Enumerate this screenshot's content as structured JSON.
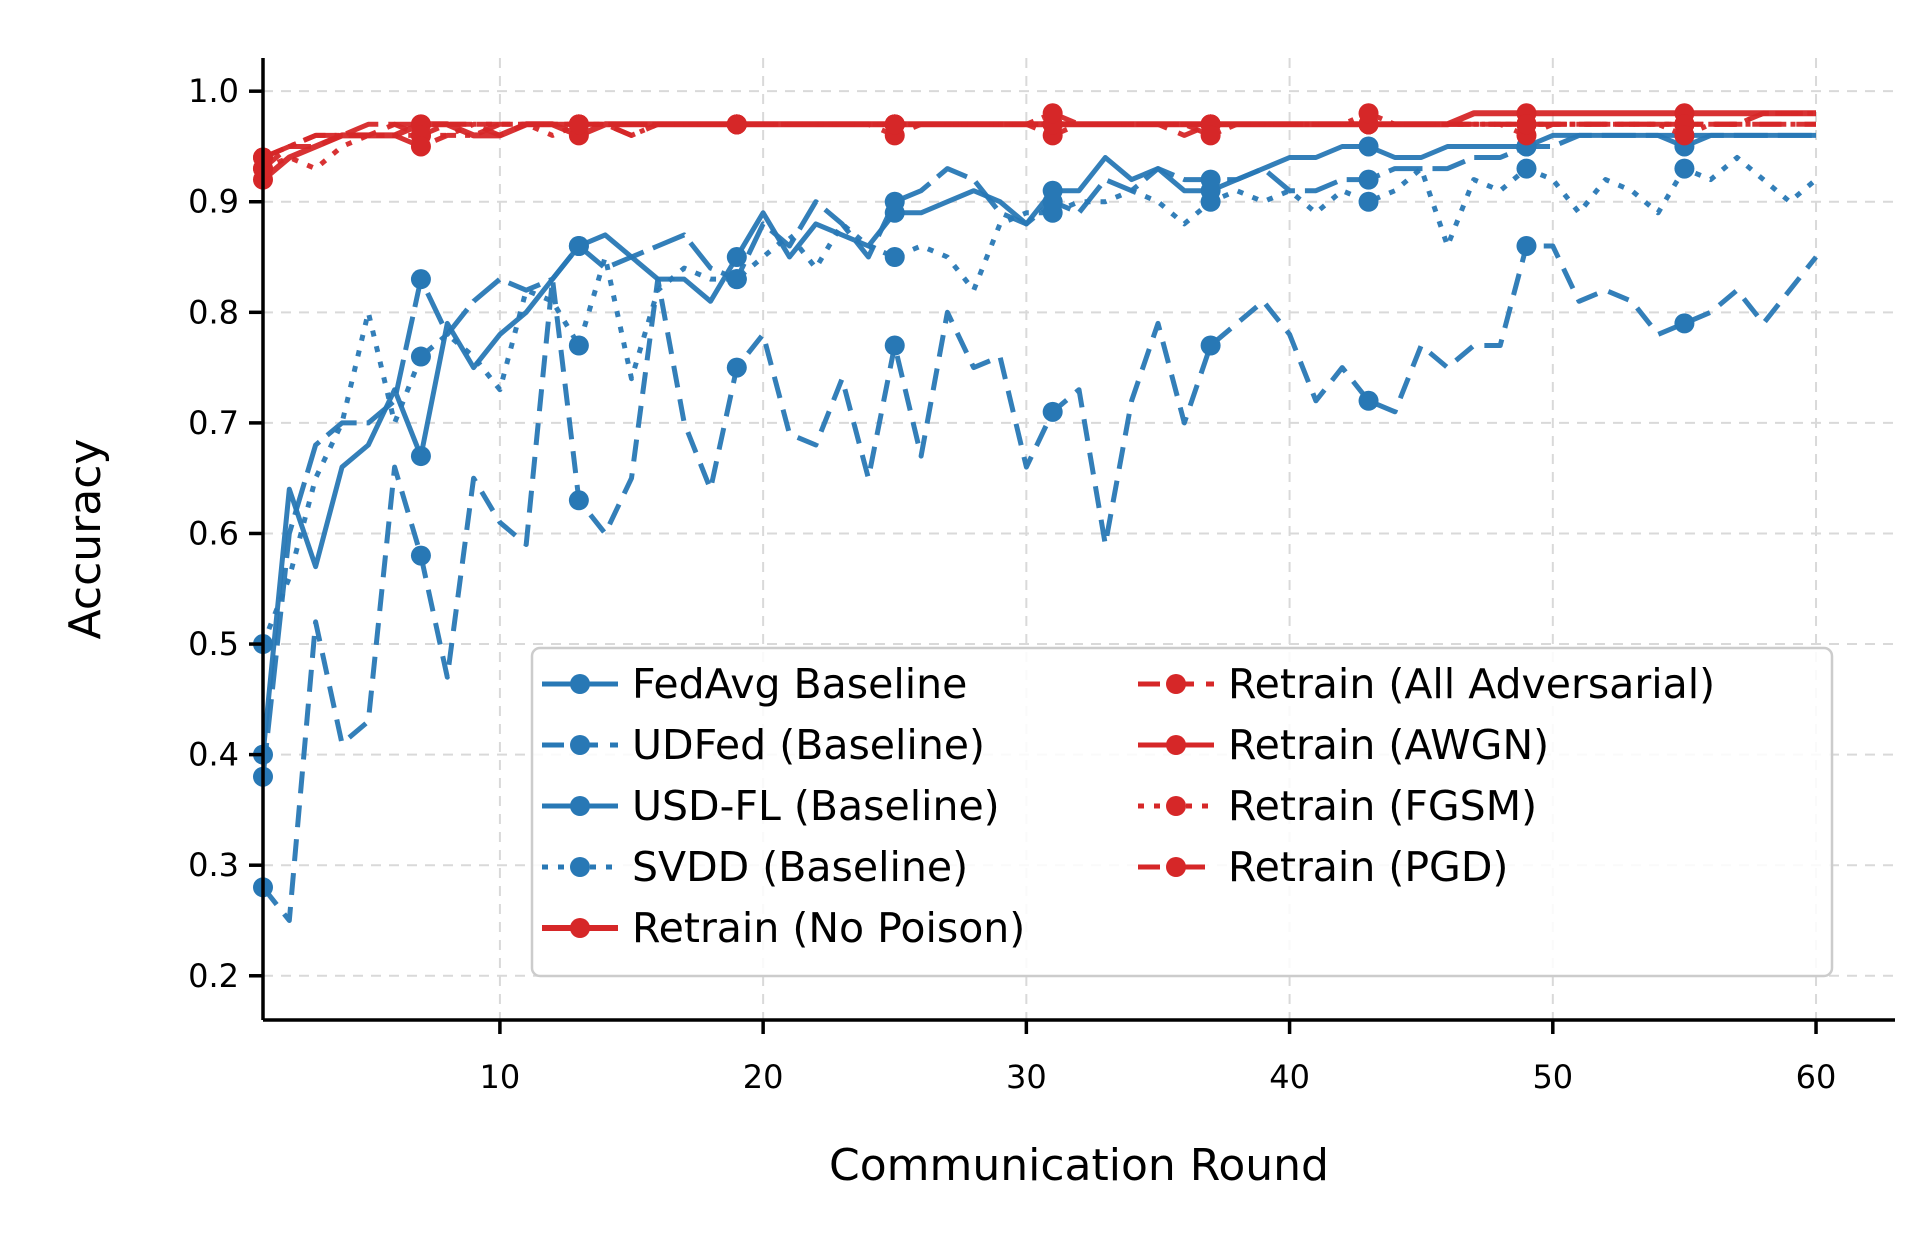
{
  "chart_data": {
    "type": "line",
    "xlabel": "Communication Round",
    "ylabel": "Accuracy",
    "xlim": [
      1,
      63
    ],
    "ylim": [
      0.16,
      1.03
    ],
    "xticks": [
      10,
      20,
      30,
      40,
      50,
      60
    ],
    "yticks": [
      0.2,
      0.3,
      0.4,
      0.5,
      0.6,
      0.7,
      0.8,
      0.9,
      1.0
    ],
    "ytick_labels": [
      "0.2",
      "0.3",
      "0.4",
      "0.5",
      "0.6",
      "0.7",
      "0.8",
      "0.9",
      "1.0"
    ],
    "grid": true,
    "legend_position": "lower-right",
    "marker_every": 6,
    "marker_start": 1,
    "series": [
      {
        "name": "FedAvg Baseline",
        "color": "#2878b5",
        "dash": "solid",
        "width": 5,
        "x": [
          1,
          2,
          3,
          4,
          5,
          6,
          7,
          8,
          9,
          10,
          11,
          12,
          13,
          14,
          15,
          16,
          17,
          18,
          19,
          20,
          21,
          22,
          23,
          24,
          25,
          26,
          27,
          28,
          29,
          30,
          31,
          32,
          33,
          34,
          35,
          36,
          37,
          38,
          39,
          40,
          41,
          42,
          43,
          44,
          45,
          46,
          47,
          48,
          49,
          50,
          51,
          52,
          53,
          54,
          55,
          56,
          57,
          58,
          59,
          60
        ],
        "values": [
          0.4,
          0.64,
          0.57,
          0.66,
          0.68,
          0.73,
          0.67,
          0.79,
          0.75,
          0.78,
          0.8,
          0.83,
          0.86,
          0.87,
          0.85,
          0.83,
          0.83,
          0.81,
          0.85,
          0.89,
          0.85,
          0.88,
          0.87,
          0.86,
          0.89,
          0.89,
          0.9,
          0.91,
          0.9,
          0.88,
          0.91,
          0.91,
          0.94,
          0.92,
          0.93,
          0.91,
          0.91,
          0.92,
          0.93,
          0.94,
          0.94,
          0.95,
          0.95,
          0.94,
          0.94,
          0.95,
          0.95,
          0.95,
          0.95,
          0.96,
          0.96,
          0.96,
          0.96,
          0.96,
          0.95,
          0.96,
          0.96,
          0.96,
          0.96,
          0.96
        ]
      },
      {
        "name": "UDFed (Baseline)",
        "color": "#2878b5",
        "dash": "dashed",
        "width": 5,
        "x": [
          1,
          2,
          3,
          4,
          5,
          6,
          7,
          8,
          9,
          10,
          11,
          12,
          13,
          14,
          15,
          16,
          17,
          18,
          19,
          20,
          21,
          22,
          23,
          24,
          25,
          26,
          27,
          28,
          29,
          30,
          31,
          32,
          33,
          34,
          35,
          36,
          37,
          38,
          39,
          40,
          41,
          42,
          43,
          44,
          45,
          46,
          47,
          48,
          49,
          50,
          51,
          52,
          53,
          54,
          55,
          56,
          57,
          58,
          59,
          60
        ],
        "values": [
          0.28,
          0.25,
          0.52,
          0.41,
          0.43,
          0.66,
          0.58,
          0.47,
          0.65,
          0.61,
          0.59,
          0.83,
          0.63,
          0.6,
          0.65,
          0.83,
          0.7,
          0.64,
          0.75,
          0.78,
          0.69,
          0.68,
          0.74,
          0.65,
          0.77,
          0.67,
          0.8,
          0.75,
          0.76,
          0.66,
          0.71,
          0.73,
          0.59,
          0.72,
          0.79,
          0.7,
          0.77,
          0.79,
          0.81,
          0.78,
          0.72,
          0.75,
          0.72,
          0.71,
          0.77,
          0.75,
          0.77,
          0.77,
          0.86,
          0.86,
          0.81,
          0.82,
          0.81,
          0.78,
          0.79,
          0.8,
          0.82,
          0.79,
          0.82,
          0.85
        ]
      },
      {
        "name": "USD-FL (Baseline)",
        "color": "#2878b5",
        "dash": "longdash",
        "width": 5,
        "x": [
          1,
          2,
          3,
          4,
          5,
          6,
          7,
          8,
          9,
          10,
          11,
          12,
          13,
          14,
          15,
          16,
          17,
          18,
          19,
          20,
          21,
          22,
          23,
          24,
          25,
          26,
          27,
          28,
          29,
          30,
          31,
          32,
          33,
          34,
          35,
          36,
          37,
          38,
          39,
          40,
          41,
          42,
          43,
          44,
          45,
          46,
          47,
          48,
          49,
          50,
          51,
          52,
          53,
          54,
          55,
          56,
          57,
          58,
          59,
          60
        ],
        "values": [
          0.38,
          0.6,
          0.68,
          0.7,
          0.7,
          0.72,
          0.83,
          0.78,
          0.81,
          0.83,
          0.82,
          0.83,
          0.86,
          0.84,
          0.85,
          0.86,
          0.87,
          0.84,
          0.83,
          0.88,
          0.86,
          0.9,
          0.88,
          0.85,
          0.9,
          0.91,
          0.93,
          0.92,
          0.89,
          0.88,
          0.9,
          0.89,
          0.92,
          0.91,
          0.93,
          0.92,
          0.92,
          0.92,
          0.93,
          0.91,
          0.91,
          0.92,
          0.92,
          0.93,
          0.93,
          0.93,
          0.94,
          0.94,
          0.95,
          0.95,
          0.96,
          0.96,
          0.96,
          0.96,
          0.96,
          0.96,
          0.96,
          0.96,
          0.96,
          0.96
        ]
      },
      {
        "name": "SVDD (Baseline)",
        "color": "#2878b5",
        "dash": "dotted",
        "width": 5,
        "x": [
          1,
          2,
          3,
          4,
          5,
          6,
          7,
          8,
          9,
          10,
          11,
          12,
          13,
          14,
          15,
          16,
          17,
          18,
          19,
          20,
          21,
          22,
          23,
          24,
          25,
          26,
          27,
          28,
          29,
          30,
          31,
          32,
          33,
          34,
          35,
          36,
          37,
          38,
          39,
          40,
          41,
          42,
          43,
          44,
          45,
          46,
          47,
          48,
          49,
          50,
          51,
          52,
          53,
          54,
          55,
          56,
          57,
          58,
          59,
          60
        ],
        "values": [
          0.5,
          0.56,
          0.65,
          0.7,
          0.8,
          0.7,
          0.76,
          0.78,
          0.76,
          0.73,
          0.82,
          0.81,
          0.77,
          0.85,
          0.74,
          0.82,
          0.84,
          0.83,
          0.83,
          0.85,
          0.87,
          0.84,
          0.88,
          0.86,
          0.85,
          0.86,
          0.85,
          0.82,
          0.88,
          0.89,
          0.89,
          0.9,
          0.9,
          0.91,
          0.9,
          0.88,
          0.9,
          0.91,
          0.9,
          0.91,
          0.89,
          0.91,
          0.9,
          0.91,
          0.93,
          0.86,
          0.92,
          0.91,
          0.93,
          0.92,
          0.89,
          0.92,
          0.91,
          0.89,
          0.93,
          0.92,
          0.94,
          0.92,
          0.9,
          0.92
        ]
      },
      {
        "name": "Retrain (No Poison)",
        "color": "#d62728",
        "dash": "solid",
        "width": 6,
        "x": [
          1,
          2,
          3,
          4,
          5,
          6,
          7,
          8,
          9,
          10,
          11,
          12,
          13,
          14,
          15,
          16,
          17,
          18,
          19,
          20,
          21,
          22,
          23,
          24,
          25,
          26,
          27,
          28,
          29,
          30,
          31,
          32,
          33,
          34,
          35,
          36,
          37,
          38,
          39,
          40,
          41,
          42,
          43,
          44,
          45,
          46,
          47,
          48,
          49,
          50,
          51,
          52,
          53,
          54,
          55,
          56,
          57,
          58,
          59,
          60
        ],
        "values": [
          0.92,
          0.94,
          0.95,
          0.96,
          0.96,
          0.96,
          0.97,
          0.97,
          0.96,
          0.96,
          0.97,
          0.97,
          0.96,
          0.97,
          0.97,
          0.97,
          0.97,
          0.97,
          0.97,
          0.97,
          0.97,
          0.97,
          0.97,
          0.97,
          0.97,
          0.97,
          0.97,
          0.97,
          0.97,
          0.97,
          0.97,
          0.97,
          0.97,
          0.97,
          0.97,
          0.97,
          0.97,
          0.97,
          0.97,
          0.97,
          0.97,
          0.97,
          0.97,
          0.97,
          0.97,
          0.97,
          0.98,
          0.98,
          0.98,
          0.98,
          0.98,
          0.98,
          0.98,
          0.98,
          0.98,
          0.98,
          0.98,
          0.98,
          0.98,
          0.98
        ]
      },
      {
        "name": "Retrain (All Adversarial)",
        "color": "#d62728",
        "dash": "dashed",
        "width": 5,
        "x": [
          1,
          2,
          3,
          4,
          5,
          6,
          7,
          8,
          9,
          10,
          11,
          12,
          13,
          14,
          15,
          16,
          17,
          18,
          19,
          20,
          21,
          22,
          23,
          24,
          25,
          26,
          27,
          28,
          29,
          30,
          31,
          32,
          33,
          34,
          35,
          36,
          37,
          38,
          39,
          40,
          41,
          42,
          43,
          44,
          45,
          46,
          47,
          48,
          49,
          50,
          51,
          52,
          53,
          54,
          55,
          56,
          57,
          58,
          59,
          60
        ],
        "values": [
          0.93,
          0.95,
          0.95,
          0.96,
          0.96,
          0.97,
          0.96,
          0.97,
          0.97,
          0.96,
          0.97,
          0.97,
          0.97,
          0.97,
          0.96,
          0.97,
          0.97,
          0.97,
          0.97,
          0.97,
          0.97,
          0.97,
          0.97,
          0.97,
          0.96,
          0.97,
          0.97,
          0.97,
          0.97,
          0.97,
          0.96,
          0.97,
          0.97,
          0.97,
          0.97,
          0.96,
          0.97,
          0.97,
          0.97,
          0.97,
          0.97,
          0.97,
          0.97,
          0.97,
          0.97,
          0.97,
          0.97,
          0.97,
          0.96,
          0.97,
          0.97,
          0.97,
          0.97,
          0.97,
          0.97,
          0.97,
          0.97,
          0.98,
          0.98,
          0.98
        ]
      },
      {
        "name": "Retrain (AWGN)",
        "color": "#d62728",
        "dash": "longdash",
        "width": 5,
        "x": [
          1,
          2,
          3,
          4,
          5,
          6,
          7,
          8,
          9,
          10,
          11,
          12,
          13,
          14,
          15,
          16,
          17,
          18,
          19,
          20,
          21,
          22,
          23,
          24,
          25,
          26,
          27,
          28,
          29,
          30,
          31,
          32,
          33,
          34,
          35,
          36,
          37,
          38,
          39,
          40,
          41,
          42,
          43,
          44,
          45,
          46,
          47,
          48,
          49,
          50,
          51,
          52,
          53,
          54,
          55,
          56,
          57,
          58,
          59,
          60
        ],
        "values": [
          0.94,
          0.95,
          0.96,
          0.96,
          0.97,
          0.97,
          0.97,
          0.97,
          0.97,
          0.97,
          0.97,
          0.97,
          0.97,
          0.97,
          0.97,
          0.97,
          0.97,
          0.97,
          0.97,
          0.97,
          0.97,
          0.97,
          0.97,
          0.97,
          0.97,
          0.97,
          0.97,
          0.97,
          0.97,
          0.97,
          0.97,
          0.97,
          0.97,
          0.97,
          0.97,
          0.97,
          0.97,
          0.97,
          0.97,
          0.97,
          0.97,
          0.97,
          0.97,
          0.97,
          0.97,
          0.97,
          0.97,
          0.97,
          0.97,
          0.97,
          0.97,
          0.97,
          0.97,
          0.97,
          0.97,
          0.97,
          0.97,
          0.97,
          0.97,
          0.97
        ]
      },
      {
        "name": "Retrain (FGSM)",
        "color": "#d62728",
        "dash": "dotted",
        "width": 5,
        "x": [
          1,
          2,
          3,
          4,
          5,
          6,
          7,
          8,
          9,
          10,
          11,
          12,
          13,
          14,
          15,
          16,
          17,
          18,
          19,
          20,
          21,
          22,
          23,
          24,
          25,
          26,
          27,
          28,
          29,
          30,
          31,
          32,
          33,
          34,
          35,
          36,
          37,
          38,
          39,
          40,
          41,
          42,
          43,
          44,
          45,
          46,
          47,
          48,
          49,
          50,
          51,
          52,
          53,
          54,
          55,
          56,
          57,
          58,
          59,
          60
        ],
        "values": [
          0.93,
          0.94,
          0.93,
          0.95,
          0.96,
          0.96,
          0.96,
          0.96,
          0.97,
          0.97,
          0.97,
          0.96,
          0.97,
          0.97,
          0.97,
          0.97,
          0.97,
          0.97,
          0.97,
          0.97,
          0.97,
          0.97,
          0.97,
          0.97,
          0.97,
          0.97,
          0.97,
          0.97,
          0.97,
          0.97,
          0.97,
          0.97,
          0.97,
          0.97,
          0.97,
          0.97,
          0.97,
          0.97,
          0.97,
          0.97,
          0.97,
          0.97,
          0.97,
          0.97,
          0.97,
          0.97,
          0.97,
          0.97,
          0.97,
          0.97,
          0.97,
          0.97,
          0.97,
          0.97,
          0.97,
          0.97,
          0.97,
          0.98,
          0.98,
          0.98
        ]
      },
      {
        "name": "Retrain (PGD)",
        "color": "#d62728",
        "dash": "dashdot",
        "width": 5,
        "x": [
          1,
          2,
          3,
          4,
          5,
          6,
          7,
          8,
          9,
          10,
          11,
          12,
          13,
          14,
          15,
          16,
          17,
          18,
          19,
          20,
          21,
          22,
          23,
          24,
          25,
          26,
          27,
          28,
          29,
          30,
          31,
          32,
          33,
          34,
          35,
          36,
          37,
          38,
          39,
          40,
          41,
          42,
          43,
          44,
          45,
          46,
          47,
          48,
          49,
          50,
          51,
          52,
          53,
          54,
          55,
          56,
          57,
          58,
          59,
          60
        ],
        "values": [
          0.94,
          0.95,
          0.96,
          0.96,
          0.96,
          0.96,
          0.95,
          0.96,
          0.96,
          0.97,
          0.97,
          0.97,
          0.97,
          0.97,
          0.96,
          0.97,
          0.97,
          0.97,
          0.97,
          0.97,
          0.97,
          0.97,
          0.97,
          0.97,
          0.97,
          0.97,
          0.97,
          0.97,
          0.97,
          0.97,
          0.98,
          0.97,
          0.97,
          0.97,
          0.97,
          0.97,
          0.96,
          0.97,
          0.97,
          0.97,
          0.97,
          0.97,
          0.98,
          0.97,
          0.97,
          0.97,
          0.97,
          0.97,
          0.97,
          0.97,
          0.97,
          0.97,
          0.97,
          0.97,
          0.96,
          0.97,
          0.97,
          0.97,
          0.97,
          0.97
        ]
      }
    ],
    "legend_columns": [
      [
        "FedAvg Baseline",
        "UDFed (Baseline)",
        "USD-FL (Baseline)",
        "SVDD (Baseline)",
        "Retrain (No Poison)"
      ],
      [
        "Retrain (All Adversarial)",
        "Retrain (AWGN)",
        "Retrain (FGSM)",
        "Retrain (PGD)"
      ]
    ]
  }
}
